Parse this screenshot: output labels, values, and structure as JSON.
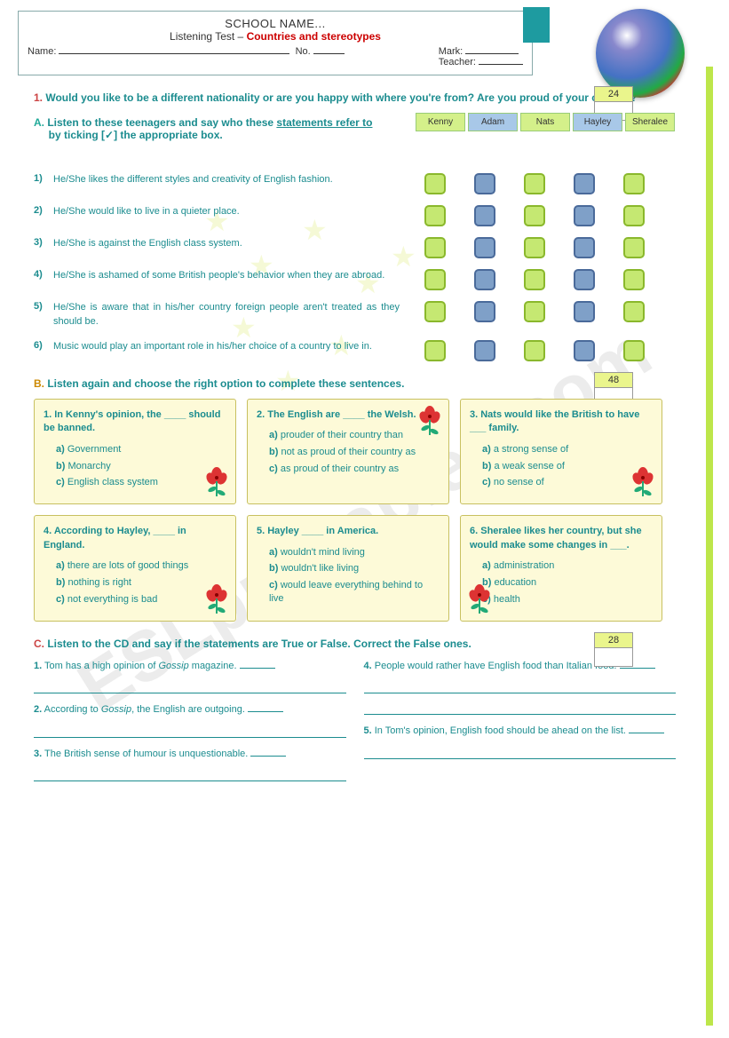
{
  "header": {
    "school": "SCHOOL NAME...",
    "test_label": "Listening Test – ",
    "test_topic": "Countries and stereotypes",
    "name_label": "Name:",
    "no_label": "No.",
    "mark_label": "Mark:",
    "teacher_label": "Teacher:"
  },
  "intro": {
    "num": "1.",
    "text": "Would you like to be a different nationality or are you happy with where you're from? Are you proud of your country?"
  },
  "sectionA": {
    "letter": "A.",
    "instruction_pre": "Listen to these teenagers and say who these ",
    "instruction_u": "statements refer to",
    "instruction_post": " by ticking [✓] the  appropriate box.",
    "score": "24",
    "names": [
      "Kenny",
      "Adam",
      "Nats",
      "Hayley",
      "Sheralee"
    ],
    "name_colors": [
      "g",
      "b",
      "g",
      "b",
      "g"
    ],
    "statements": [
      {
        "n": "1)",
        "t": "He/She likes the different styles and creativity of English fashion."
      },
      {
        "n": "2)",
        "t": "He/She would like to live in a quieter place."
      },
      {
        "n": "3)",
        "t": "He/She is against the English class system."
      },
      {
        "n": "4)",
        "t": "He/She is ashamed of some British people's behavior when they are abroad."
      },
      {
        "n": "5)",
        "t": "He/She is aware that in his/her country foreign people aren't treated as they should be."
      },
      {
        "n": "6)",
        "t": "Music would play an important role in his/her choice of a country to live in."
      }
    ],
    "check_colors": [
      "g",
      "b",
      "g",
      "b",
      "g"
    ]
  },
  "sectionB": {
    "letter": "B.",
    "instruction": "Listen again and choose the right option to complete these sentences.",
    "score": "48",
    "cards": [
      {
        "q": "1. In Kenny's opinion, the ____ should be banned.",
        "opts": [
          "Government",
          "Monarchy",
          "English class system"
        ],
        "flower": "br"
      },
      {
        "q": "2. The English are  ____ the Welsh.",
        "opts": [
          "prouder of their country than",
          "not as proud of their country as",
          "as proud of their country as"
        ],
        "flower": "tr"
      },
      {
        "q": "3. Nats would like the British to have  ___ family.",
        "opts": [
          "a strong sense of",
          "a weak sense of",
          "no sense of"
        ],
        "flower": "br"
      },
      {
        "q": "4. According to Hayley, ____ in England.",
        "opts": [
          "there are lots of good things",
          "nothing is right",
          "not everything is bad"
        ],
        "flower": "br"
      },
      {
        "q": "5. Hayley  ____ in America.",
        "opts": [
          "wouldn't mind living",
          "wouldn't like living",
          "would leave everything behind to live"
        ],
        "flower": ""
      },
      {
        "q": "6. Sheralee likes her country, but she would make some changes in ___.",
        "opts": [
          "administration",
          "education",
          "health"
        ],
        "flower": "bl"
      }
    ],
    "opt_letters": [
      "a)",
      "b)",
      "c)"
    ]
  },
  "sectionC": {
    "letter": "C.",
    "instruction": "Listen to the CD and say if the statements are True or False. Correct the False ones.",
    "score": "28",
    "left": [
      {
        "n": "1.",
        "t": "Tom has a high opinion of <em>Gossip</em> magazine."
      },
      {
        "n": "2.",
        "t": "According to <em>Gossip</em>, the English are outgoing."
      },
      {
        "n": "3.",
        "t": "The British sense of humour is unquestionable."
      }
    ],
    "right": [
      {
        "n": "4.",
        "t": "People would rather have English food than Italian food."
      },
      {
        "n": "5.",
        "t": "In Tom's opinion, English food should be ahead on the list."
      }
    ]
  },
  "watermark": "ESLprintables.com"
}
